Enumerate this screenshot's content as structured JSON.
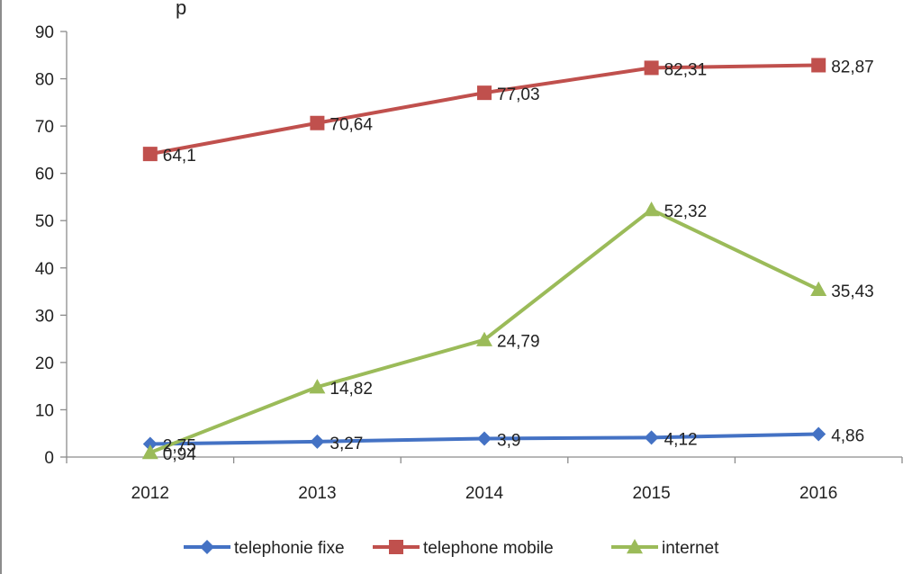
{
  "chart_data": {
    "type": "line",
    "title": "p",
    "categories": [
      "2012",
      "2013",
      "2014",
      "2015",
      "2016"
    ],
    "ylim": [
      0,
      90
    ],
    "yticks": [
      0,
      10,
      20,
      30,
      40,
      50,
      60,
      70,
      80,
      90
    ],
    "grid": false,
    "legend_position": "bottom",
    "series": [
      {
        "name": "telephonie fixe",
        "color": "#4472C4",
        "marker": "diamond",
        "values": [
          2.75,
          3.27,
          3.9,
          4.12,
          4.86
        ],
        "labels": [
          "2,75",
          "3,27",
          "3,9",
          "4,12",
          "4,86"
        ]
      },
      {
        "name": "telephone mobile",
        "color": "#C0504D",
        "marker": "square",
        "values": [
          64.1,
          70.64,
          77.03,
          82.31,
          82.87
        ],
        "labels": [
          "64,1",
          "70,64",
          "77,03",
          "82,31",
          "82,87"
        ]
      },
      {
        "name": "internet",
        "color": "#9BBB59",
        "marker": "triangle",
        "values": [
          0.94,
          14.82,
          24.79,
          52.32,
          35.43
        ],
        "labels": [
          "0,94",
          "14,82",
          "24,79",
          "52,32",
          "35,43"
        ]
      }
    ]
  }
}
